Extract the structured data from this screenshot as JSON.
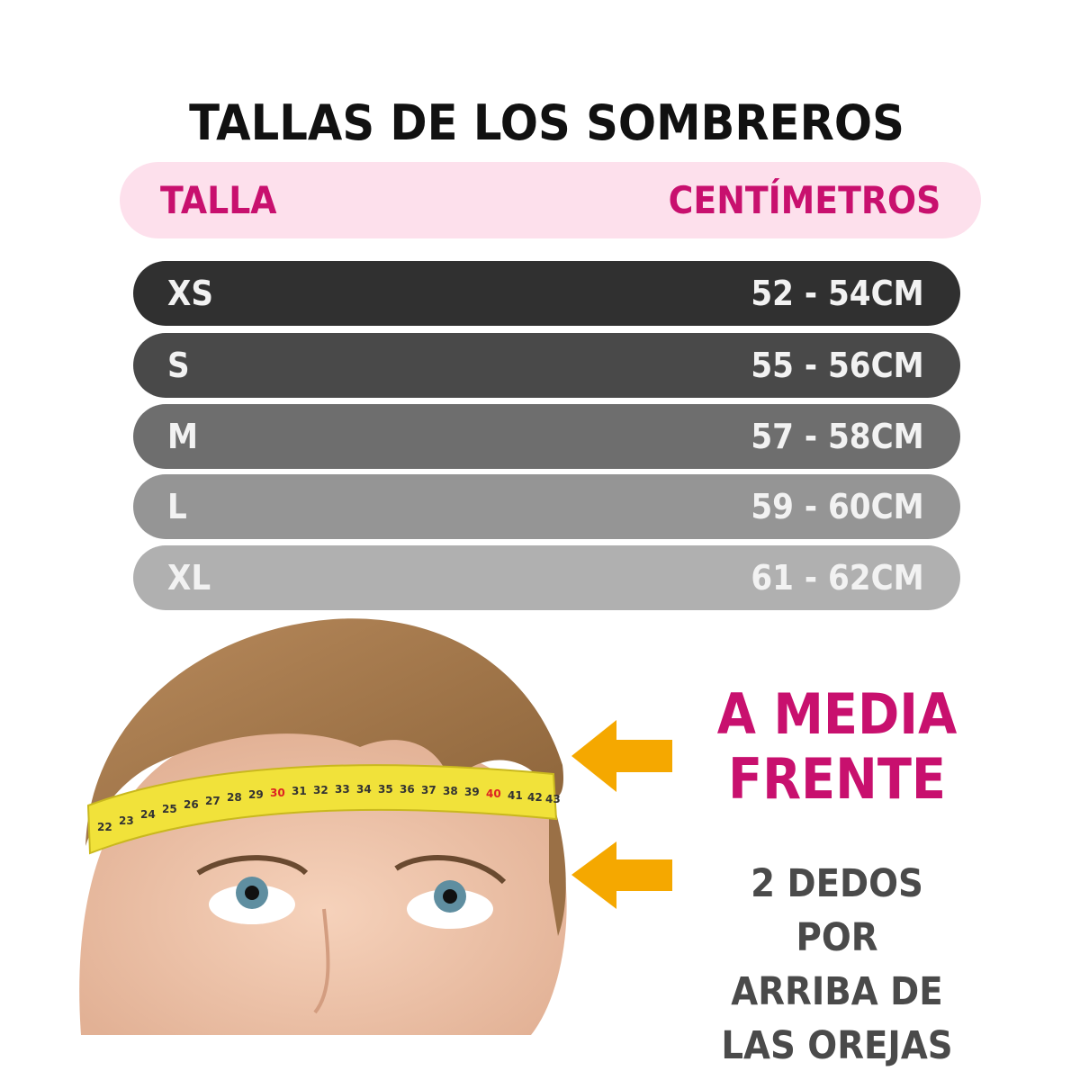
{
  "title": "TALLAS DE LOS SOMBREROS",
  "header": {
    "size_label": "TALLA",
    "measure_label": "CENTÍMETROS",
    "background": "#fde0ec",
    "text_color": "#c8106e"
  },
  "rows": [
    {
      "size": "XS",
      "range": "52 - 54CM",
      "color": "#303030"
    },
    {
      "size": "S",
      "range": "55 - 56CM",
      "color": "#494949"
    },
    {
      "size": "M",
      "range": "57 - 58CM",
      "color": "#6e6e6e"
    },
    {
      "size": "L",
      "range": "59 - 60CM",
      "color": "#959595"
    },
    {
      "size": "XL",
      "range": "61 - 62CM",
      "color": "#b0b0b0"
    }
  ],
  "instructions": {
    "primary_line1": "A MEDIA",
    "primary_line2": "FRENTE",
    "secondary_line1": "2 DEDOS POR",
    "secondary_line2": "ARRIBA DE",
    "secondary_line3": "LAS OREJAS",
    "arrow_color": "#f5a800"
  },
  "tape_numbers": [
    "22",
    "23",
    "24",
    "25",
    "26",
    "27",
    "28",
    "29",
    "30",
    "31",
    "32",
    "33",
    "34",
    "35",
    "36",
    "37",
    "38",
    "39",
    "40",
    "41",
    "42",
    "43"
  ]
}
